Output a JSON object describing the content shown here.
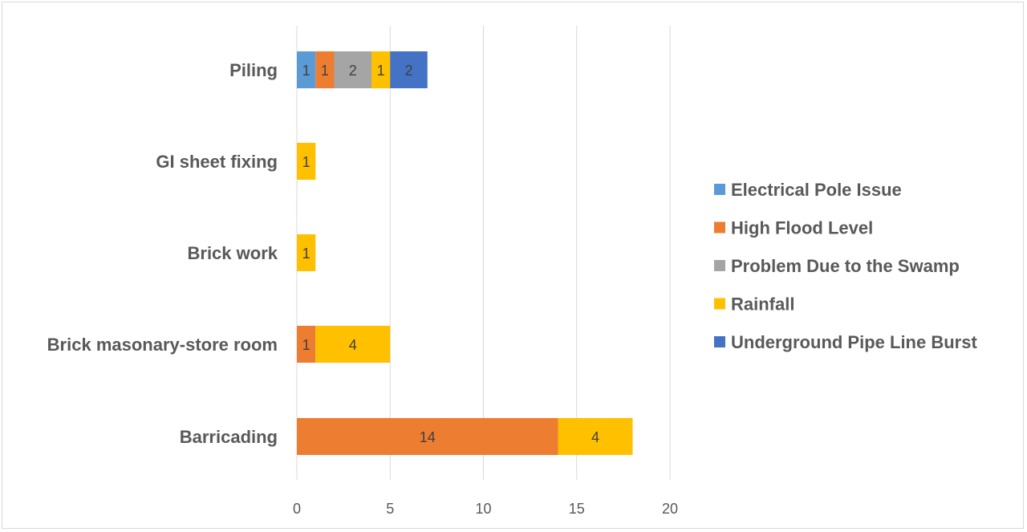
{
  "chart_data": {
    "type": "bar",
    "orientation": "horizontal",
    "stacked": true,
    "categories": [
      "Piling",
      "GI sheet fixing",
      "Brick work",
      "Brick masonary-store room",
      "Barricading"
    ],
    "series": [
      {
        "name": "Electrical Pole Issue",
        "color": "#5b9bd5",
        "values": [
          1,
          0,
          0,
          0,
          0
        ]
      },
      {
        "name": "High Flood Level",
        "color": "#ed7d31",
        "values": [
          1,
          0,
          0,
          1,
          14
        ]
      },
      {
        "name": "Problem Due to the Swamp",
        "color": "#a5a5a5",
        "values": [
          2,
          0,
          0,
          0,
          0
        ]
      },
      {
        "name": "Rainfall",
        "color": "#ffc000",
        "values": [
          1,
          1,
          1,
          4,
          4
        ]
      },
      {
        "name": "Underground Pipe Line Burst",
        "color": "#4472c4",
        "values": [
          2,
          0,
          0,
          0,
          0
        ]
      }
    ],
    "xlim": [
      0,
      20
    ],
    "x_ticks": [
      "0",
      "5",
      "10",
      "15",
      "20"
    ],
    "grid": true,
    "legend_position": "right",
    "data_labels": true,
    "title": "",
    "xlabel": "",
    "ylabel": ""
  }
}
